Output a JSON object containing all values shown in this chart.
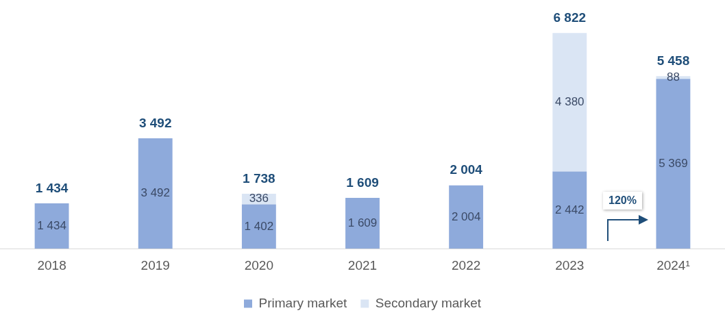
{
  "chart_data": {
    "type": "bar",
    "stacked": true,
    "categories": [
      "2018",
      "2019",
      "2020",
      "2021",
      "2022",
      "2023",
      "2024¹"
    ],
    "series": [
      {
        "name": "Primary market",
        "color": "#8eaadb",
        "values": [
          1434,
          3492,
          1402,
          1609,
          2004,
          2442,
          5369
        ],
        "value_labels": [
          "1 434",
          "3 492",
          "1 402",
          "1 609",
          "2 004",
          "2 442",
          "5 369"
        ]
      },
      {
        "name": "Secondary market",
        "color": "#dae5f4",
        "values": [
          null,
          null,
          336,
          null,
          null,
          4380,
          88
        ],
        "value_labels": [
          null,
          null,
          "336",
          null,
          null,
          "4 380",
          "88"
        ]
      }
    ],
    "totals": [
      "1 434",
      "3 492",
      "1 738",
      "1 609",
      "2 004",
      "6 822",
      "5 458"
    ],
    "annotations": [
      "120%"
    ],
    "legend": "bottom",
    "grid": false
  }
}
